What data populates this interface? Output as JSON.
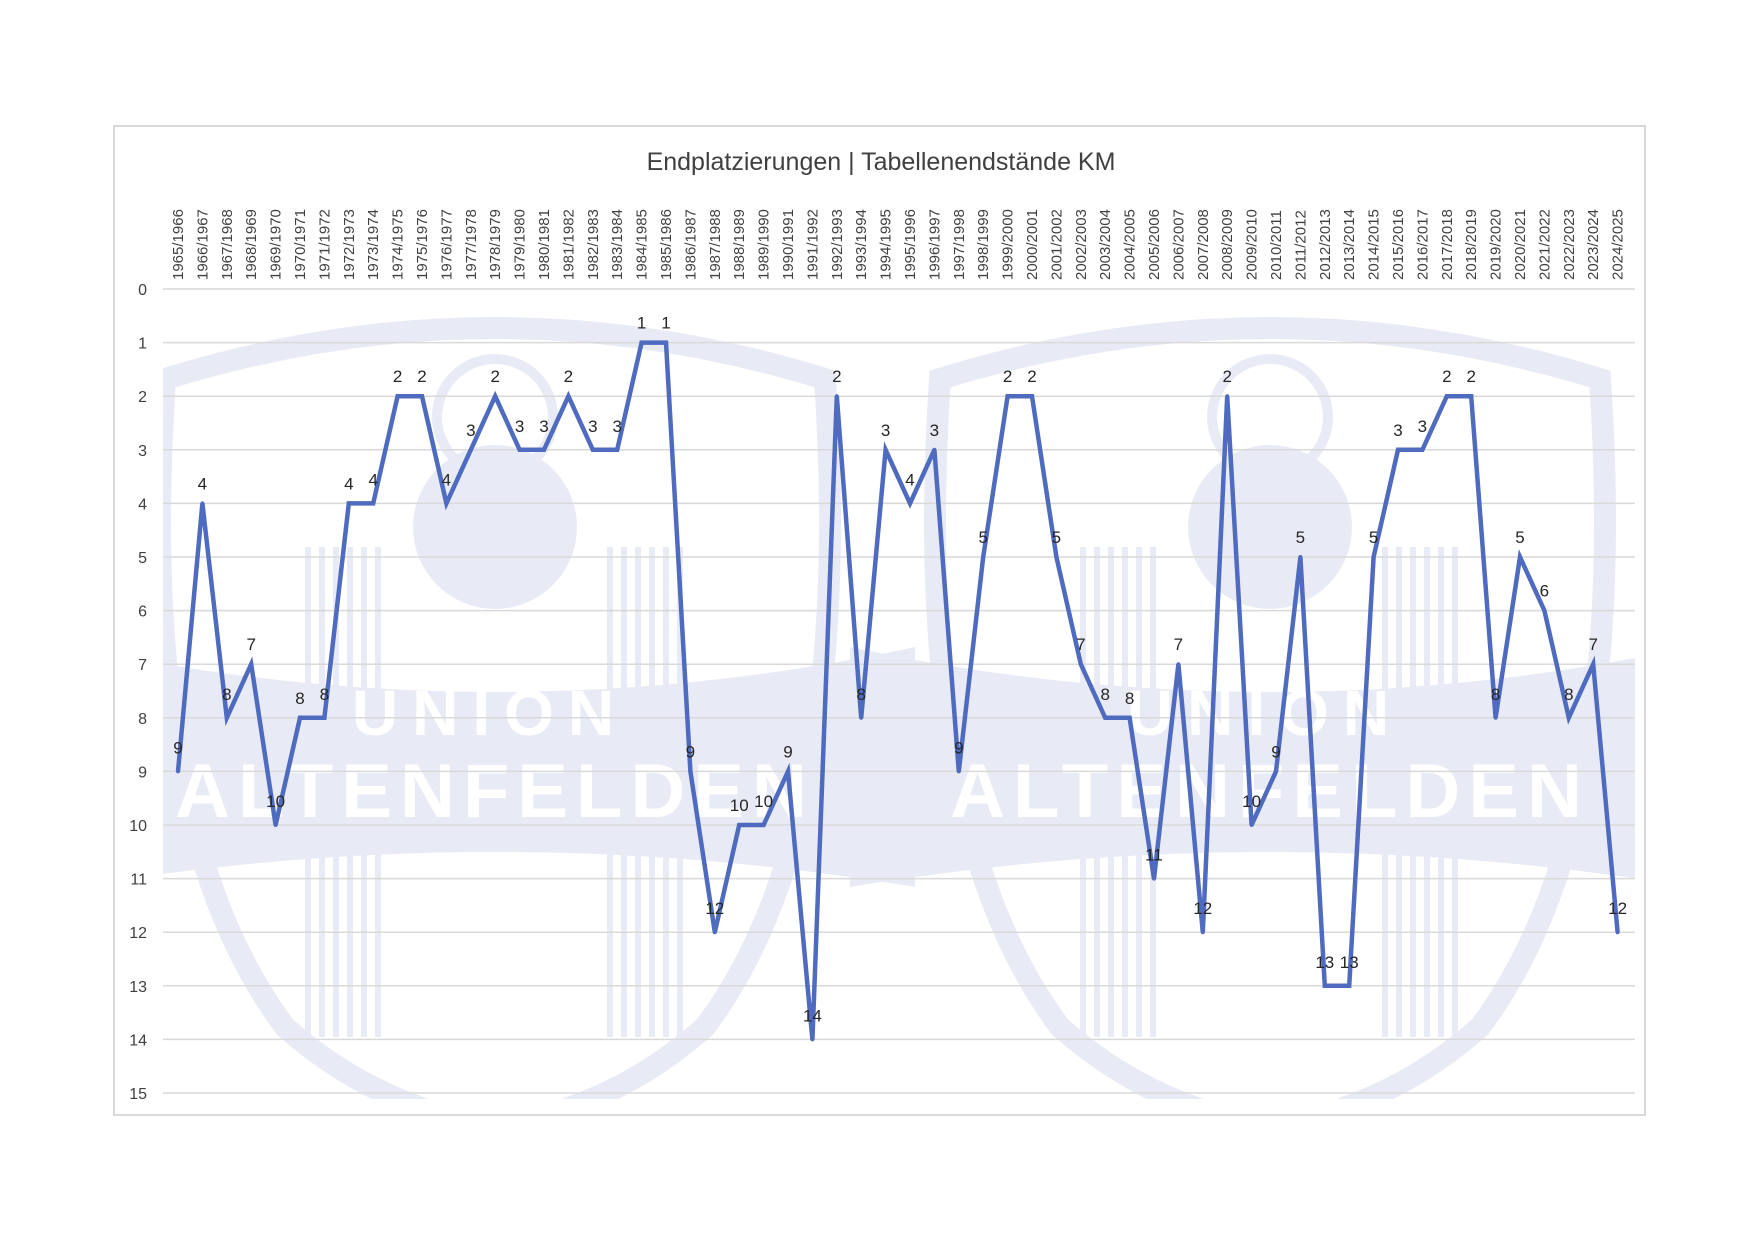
{
  "chart_data": {
    "type": "line",
    "title": "Endplatzierungen | Tabellenendstände KM",
    "xlabel": "",
    "ylabel": "",
    "ylim": [
      0,
      15
    ],
    "y_inverted": true,
    "y_ticks": [
      0,
      1,
      2,
      3,
      4,
      5,
      6,
      7,
      8,
      9,
      10,
      11,
      12,
      13,
      14,
      15
    ],
    "grid": true,
    "legend": "none",
    "line_color": "#4f6bbf",
    "watermark": {
      "word1": "UNION",
      "word2": "ALTENFELDEN",
      "color": "#e8ebf5"
    },
    "categories": [
      "1965/1966",
      "1966/1967",
      "1967/1968",
      "1968/1969",
      "1969/1970",
      "1970/1971",
      "1971/1972",
      "1972/1973",
      "1973/1974",
      "1974/1975",
      "1975/1976",
      "1976/1977",
      "1977/1978",
      "1978/1979",
      "1979/1980",
      "1980/1981",
      "1981/1982",
      "1982/1983",
      "1983/1984",
      "1984/1985",
      "1985/1986",
      "1986/1987",
      "1987/1988",
      "1988/1989",
      "1989/1990",
      "1990/1991",
      "1991/1992",
      "1992/1993",
      "1993/1994",
      "1994/1995",
      "1995/1996",
      "1996/1997",
      "1997/1998",
      "1998/1999",
      "1999/2000",
      "2000/2001",
      "2001/2002",
      "2002/2003",
      "2003/2004",
      "2004/2005",
      "2005/2006",
      "2006/2007",
      "2007/2008",
      "2008/2009",
      "2009/2010",
      "2010/2011",
      "2011/2012",
      "2012/2013",
      "2013/2014",
      "2014/2015",
      "2015/2016",
      "2016/2017",
      "2017/2018",
      "2018/2019",
      "2019/2020",
      "2020/2021",
      "2021/2022",
      "2022/2023",
      "2023/2024",
      "2024/2025"
    ],
    "values": [
      9,
      4,
      8,
      7,
      10,
      8,
      8,
      4,
      4,
      2,
      2,
      4,
      3,
      2,
      3,
      3,
      2,
      3,
      3,
      1,
      1,
      9,
      12,
      10,
      10,
      9,
      14,
      2,
      8,
      3,
      4,
      3,
      9,
      5,
      2,
      2,
      5,
      7,
      8,
      8,
      11,
      7,
      12,
      2,
      10,
      9,
      5,
      13,
      13,
      5,
      3,
      3,
      2,
      2,
      8,
      5,
      6,
      8,
      7,
      12
    ]
  }
}
